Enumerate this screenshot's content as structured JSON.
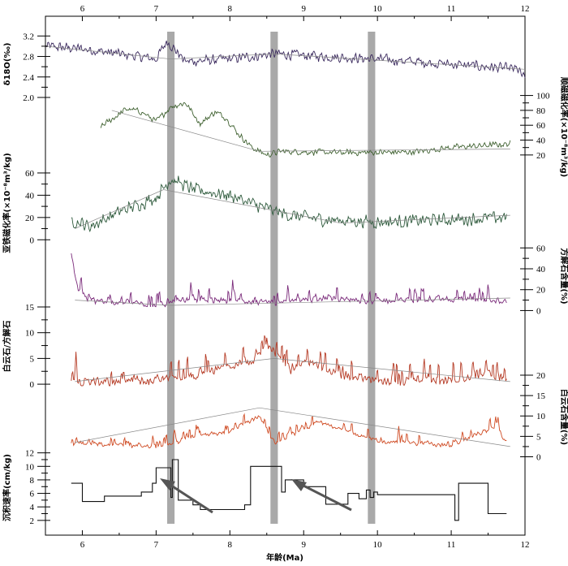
{
  "chart_data": {
    "type": "line",
    "xlabel": "年龄(Ma)",
    "xlim": [
      5.5,
      12
    ],
    "x_ticks": [
      6,
      7,
      8,
      9,
      10,
      11,
      12
    ],
    "grey_bands": [
      [
        7.15,
        7.25
      ],
      [
        8.55,
        8.65
      ],
      [
        9.87,
        9.97
      ]
    ],
    "panels": [
      {
        "name": "d18o",
        "ylabel": "δ18O(‰)",
        "side": "left",
        "color": "#3b2a5e",
        "ylim": [
          2.0,
          3.3
        ],
        "yticks": [
          "2.0",
          "2.4",
          "2.8",
          "3.2"
        ],
        "x_start": 5.5,
        "x_end": 12.0,
        "anchors": [
          [
            5.5,
            3.0
          ],
          [
            6.0,
            2.95
          ],
          [
            6.5,
            2.85
          ],
          [
            7.0,
            2.75
          ],
          [
            7.15,
            3.1
          ],
          [
            7.4,
            2.7
          ],
          [
            8.0,
            2.75
          ],
          [
            8.6,
            2.85
          ],
          [
            9.3,
            2.8
          ],
          [
            10.0,
            2.75
          ],
          [
            11.0,
            2.65
          ],
          [
            11.9,
            2.55
          ],
          [
            12.0,
            2.35
          ]
        ],
        "noise": 0.12,
        "trend": [
          [
            5.5,
            3.0
          ],
          [
            7.2,
            2.75
          ],
          [
            8.6,
            2.85
          ],
          [
            12.0,
            2.55
          ]
        ]
      },
      {
        "name": "para-susceptibility",
        "ylabel": "顺磁磁化率(×10⁻⁸m³/kg)",
        "side": "right",
        "color": "#3f6130",
        "ylim": [
          10,
          105
        ],
        "yticks": [
          "20",
          "40",
          "60",
          "80",
          "100"
        ],
        "x_start": 6.25,
        "x_end": 11.8,
        "anchors": [
          [
            6.25,
            58
          ],
          [
            6.4,
            68
          ],
          [
            6.6,
            82
          ],
          [
            6.8,
            78
          ],
          [
            7.0,
            65
          ],
          [
            7.2,
            85
          ],
          [
            7.4,
            90
          ],
          [
            7.6,
            62
          ],
          [
            7.8,
            78
          ],
          [
            7.95,
            70
          ],
          [
            8.1,
            50
          ],
          [
            8.3,
            30
          ],
          [
            8.5,
            20
          ],
          [
            8.7,
            25
          ],
          [
            9.5,
            23
          ],
          [
            10.5,
            24
          ],
          [
            11.0,
            30
          ],
          [
            11.5,
            33
          ],
          [
            11.8,
            35
          ]
        ],
        "noise": 5,
        "trend": [
          [
            6.4,
            80
          ],
          [
            8.4,
            25
          ],
          [
            11.8,
            28
          ]
        ]
      },
      {
        "name": "ferri-susceptibility",
        "ylabel": "亚铁磁化率(×10⁻⁸m³/kg)",
        "side": "left",
        "color": "#2e5a3c",
        "ylim": [
          -2,
          68
        ],
        "yticks": [
          "0",
          "20",
          "40",
          "60"
        ],
        "x_start": 5.85,
        "x_end": 11.75,
        "anchors": [
          [
            5.85,
            18
          ],
          [
            6.1,
            12
          ],
          [
            6.5,
            25
          ],
          [
            7.0,
            38
          ],
          [
            7.2,
            55
          ],
          [
            7.5,
            45
          ],
          [
            8.0,
            40
          ],
          [
            8.4,
            30
          ],
          [
            8.8,
            22
          ],
          [
            9.3,
            18
          ],
          [
            10.0,
            16
          ],
          [
            11.0,
            18
          ],
          [
            11.75,
            20
          ]
        ],
        "noise": 7,
        "trend": [
          [
            5.9,
            10
          ],
          [
            7.1,
            45
          ],
          [
            9.5,
            15
          ],
          [
            11.8,
            22
          ]
        ]
      },
      {
        "name": "calcite",
        "ylabel": "方解石含量(%)",
        "side": "right",
        "color": "#7a2a7a",
        "ylim": [
          -2,
          68
        ],
        "yticks": [
          "0",
          "20",
          "40",
          "60"
        ],
        "x_start": 5.85,
        "x_end": 11.75,
        "anchors": [
          [
            5.85,
            55
          ],
          [
            5.95,
            20
          ],
          [
            6.1,
            10
          ],
          [
            6.6,
            8
          ],
          [
            7.0,
            6
          ],
          [
            7.5,
            12
          ],
          [
            8.0,
            10
          ],
          [
            8.6,
            8
          ],
          [
            9.2,
            12
          ],
          [
            10.0,
            10
          ],
          [
            11.0,
            12
          ],
          [
            11.75,
            10
          ]
        ],
        "noise": 7,
        "trend": [
          [
            5.9,
            10
          ],
          [
            7.2,
            5
          ],
          [
            11.8,
            12
          ]
        ]
      },
      {
        "name": "dolomite-calcite-ratio",
        "ylabel": "白云石/方解石",
        "side": "left",
        "color": "#b53a24",
        "ylim": [
          -0.3,
          15
        ],
        "yticks": [
          "0",
          "5",
          "10",
          "15"
        ],
        "x_start": 5.85,
        "x_end": 11.75,
        "anchors": [
          [
            5.85,
            0.8
          ],
          [
            6.5,
            0.6
          ],
          [
            7.0,
            1.2
          ],
          [
            7.5,
            2.0
          ],
          [
            7.9,
            3.5
          ],
          [
            8.3,
            5.0
          ],
          [
            8.5,
            8.0
          ],
          [
            8.8,
            3.0
          ],
          [
            9.1,
            4.5
          ],
          [
            9.5,
            2.0
          ],
          [
            10.0,
            1.0
          ],
          [
            11.0,
            0.8
          ],
          [
            11.5,
            2.5
          ],
          [
            11.75,
            1.0
          ]
        ],
        "noise": 2.2,
        "trend": [
          [
            5.9,
            0.5
          ],
          [
            8.6,
            5.0
          ],
          [
            11.8,
            0.5
          ]
        ]
      },
      {
        "name": "dolomite",
        "ylabel": "白云石含量(%)",
        "side": "right",
        "color": "#cf4a22",
        "ylim": [
          -0.5,
          20
        ],
        "yticks": [
          "0",
          "5",
          "10",
          "15",
          "20"
        ],
        "x_start": 5.85,
        "x_end": 11.75,
        "anchors": [
          [
            5.85,
            3.5
          ],
          [
            6.5,
            3.0
          ],
          [
            7.0,
            2.5
          ],
          [
            7.5,
            5.0
          ],
          [
            8.0,
            6.5
          ],
          [
            8.4,
            10.0
          ],
          [
            8.6,
            3.5
          ],
          [
            8.9,
            6.0
          ],
          [
            9.2,
            9.0
          ],
          [
            9.5,
            7.0
          ],
          [
            10.0,
            4.0
          ],
          [
            11.0,
            3.0
          ],
          [
            11.6,
            7.5
          ],
          [
            11.75,
            4.0
          ]
        ],
        "noise": 1.4,
        "trend": [
          [
            5.9,
            3.5
          ],
          [
            8.4,
            12.0
          ],
          [
            11.8,
            2.5
          ]
        ]
      },
      {
        "name": "sedimentation-rate",
        "ylabel": "沉积速率(cm/kg)",
        "side": "left",
        "color": "#111111",
        "ylim": [
          1.5,
          12.2
        ],
        "yticks": [
          "2",
          "4",
          "6",
          "8",
          "10",
          "12"
        ],
        "steps": [
          [
            5.85,
            7.5
          ],
          [
            6.0,
            4.8
          ],
          [
            6.3,
            5.6
          ],
          [
            6.8,
            6.2
          ],
          [
            6.95,
            7.5
          ],
          [
            7.0,
            9.8
          ],
          [
            7.2,
            5.4
          ],
          [
            7.22,
            11.0
          ],
          [
            7.3,
            5.0
          ],
          [
            7.5,
            4.3
          ],
          [
            7.6,
            3.6
          ],
          [
            8.2,
            4.3
          ],
          [
            8.28,
            10.0
          ],
          [
            8.7,
            6.2
          ],
          [
            8.75,
            8.0
          ],
          [
            9.0,
            7.0
          ],
          [
            9.3,
            4.4
          ],
          [
            9.6,
            6.0
          ],
          [
            9.75,
            5.2
          ],
          [
            9.85,
            6.5
          ],
          [
            9.9,
            5.4
          ],
          [
            9.95,
            6.2
          ],
          [
            10.0,
            5.8
          ],
          [
            11.05,
            2.0
          ],
          [
            11.1,
            7.5
          ],
          [
            11.5,
            3.0
          ],
          [
            11.75,
            3.0
          ]
        ]
      }
    ]
  }
}
